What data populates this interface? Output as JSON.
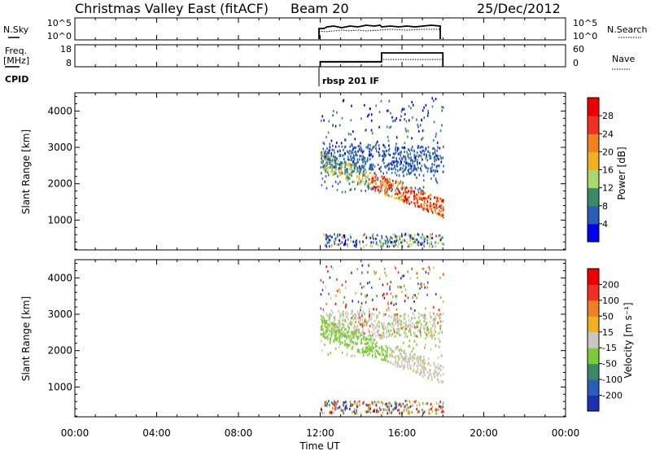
{
  "header": {
    "title": "Christmas Valley East (fitACF)",
    "beam": "Beam 20",
    "date": "25/Dec/2012"
  },
  "params": {
    "nsky_label": "N.Sky",
    "nsky_ticks": [
      "10^5",
      "10^0"
    ],
    "nsearch_label": "N.Search",
    "freq_label_1": "Freq.",
    "freq_label_2": "[MHz]",
    "freq_ticks": [
      "18",
      "8"
    ],
    "nave_ticks": [
      "60",
      "0"
    ],
    "nave_label": "Nave",
    "cpid_label": "CPID",
    "cpid_text": "rbsp 201 IF"
  },
  "panels": {
    "power": {
      "ylabel": "Slant Range [km]",
      "colorbar_label": "Power [dB]",
      "colorbar_ticks": [
        "28",
        "24",
        "20",
        "16",
        "12",
        "8",
        "4"
      ],
      "colors": [
        "#0000ee",
        "#2a5cb8",
        "#3a8a6a",
        "#a8d870",
        "#f0b020",
        "#f08020",
        "#f03020",
        "#ee0000"
      ]
    },
    "velocity": {
      "ylabel": "Slant Range [km]",
      "colorbar_label": "Velocity [m s⁻¹]",
      "colorbar_ticks": [
        "200",
        "100",
        "50",
        "15",
        "-15",
        "-50",
        "-100",
        "-200"
      ],
      "colors": [
        "#1e2fb0",
        "#2a5cb8",
        "#3a8a6a",
        "#7ccc3a",
        "#c8c8c0",
        "#f0b020",
        "#f08020",
        "#f03020",
        "#ee0000"
      ]
    }
  },
  "xaxis": {
    "label": "Time UT",
    "ticks": [
      "00:00",
      "04:00",
      "08:00",
      "12:00",
      "16:00",
      "20:00",
      "00:00"
    ]
  },
  "chart_data": {
    "type": "heatmap",
    "x_range_hours": [
      0,
      24
    ],
    "y_range_km": [
      180,
      4500
    ],
    "yticks_km": [
      1000,
      2000,
      3000,
      4000
    ],
    "data_interval_hours": [
      12.0,
      18.0
    ],
    "nsky_range": [
      1,
      100000
    ],
    "freq_range_mhz": [
      8,
      18
    ],
    "freq_steps": [
      {
        "x": [
          12.0,
          15.0
        ],
        "mhz": 10.3
      },
      {
        "x": [
          15.0,
          18.0
        ],
        "mhz": 14.3
      }
    ],
    "nave_range": [
      0,
      60
    ],
    "nave_steps": [
      {
        "x": [
          12.0,
          15.0
        ],
        "nave": 12
      },
      {
        "x": [
          15.0,
          18.0
        ],
        "nave": 20
      }
    ],
    "power_db_range": [
      0,
      32
    ],
    "velocity_ms_range": [
      -250,
      250
    ]
  }
}
